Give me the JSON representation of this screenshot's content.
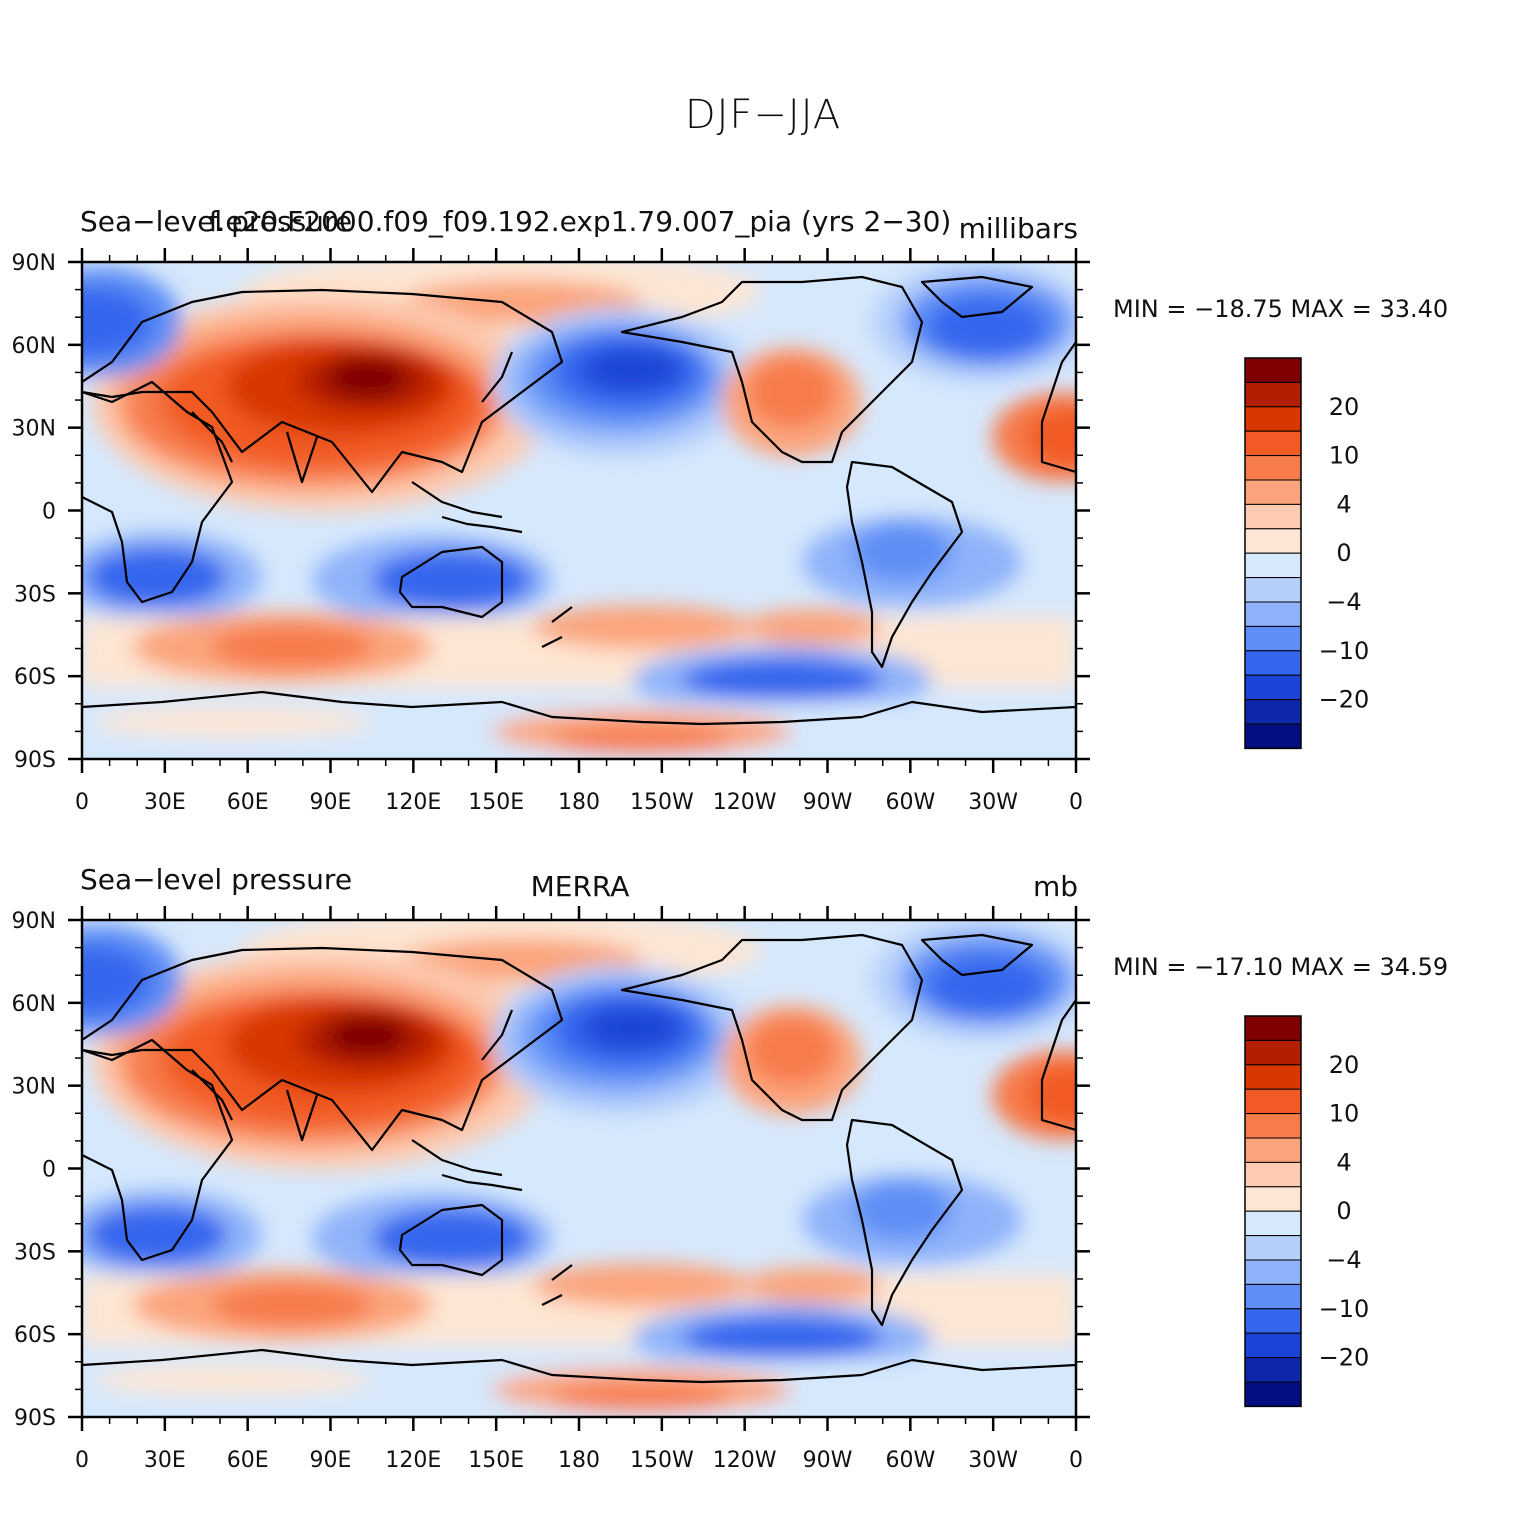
{
  "figure": {
    "title": "DJF−JJA"
  },
  "panels": [
    {
      "left_title": "Sea−level pressure",
      "center_title": "f.e20.F2000.f09_f09.192.exp1.79.007_pia (yrs 2−30)",
      "units": "millibars",
      "stats": "MIN = −18.75  MAX =   33.40"
    },
    {
      "left_title": "Sea−level pressure",
      "center_title": "MERRA",
      "units": "mb",
      "stats": "MIN = −17.10  MAX =   34.59"
    }
  ],
  "axes": {
    "lat_labels": [
      "90N",
      "60N",
      "30N",
      "0",
      "30S",
      "60S",
      "90S"
    ],
    "lon_labels": [
      "0",
      "30E",
      "60E",
      "90E",
      "120E",
      "150E",
      "180",
      "150W",
      "120W",
      "90W",
      "60W",
      "30W",
      "0"
    ]
  },
  "colorbar": {
    "labels": [
      "20",
      "10",
      "4",
      "0",
      "−4",
      "−10",
      "−20"
    ],
    "colors": [
      "#7f0000",
      "#b31e00",
      "#d83700",
      "#f15a24",
      "#f77c4b",
      "#fba47c",
      "#fdcbb1",
      "#fde6d3",
      "#d6e8fc",
      "#b5cffb",
      "#8fb3fa",
      "#5f8ff6",
      "#3466ee",
      "#1b44d6",
      "#0d27ab",
      "#040e80"
    ]
  }
}
